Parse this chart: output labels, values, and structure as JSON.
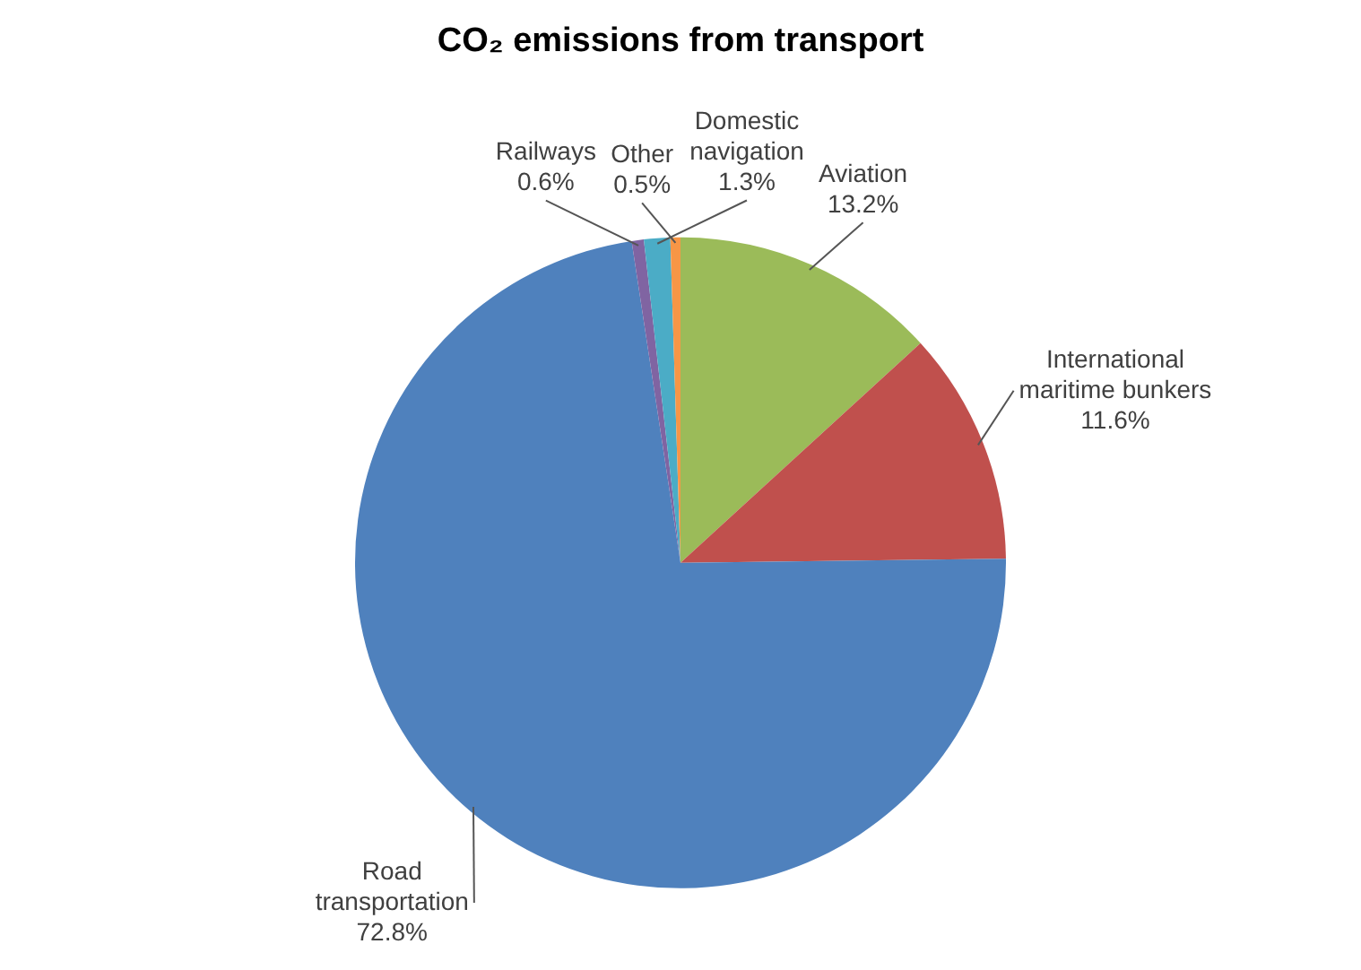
{
  "chart_data": {
    "type": "pie",
    "title": "CO₂ emissions from transport",
    "categories": [
      "Aviation",
      "International maritime bunkers",
      "Road transportation",
      "Railways",
      "Domestic navigation",
      "Other"
    ],
    "values": [
      13.2,
      11.6,
      72.8,
      0.6,
      1.3,
      0.5
    ],
    "colors": [
      "#9bbb59",
      "#c0504d",
      "#4f81bd",
      "#8064a2",
      "#4bacc6",
      "#f79646"
    ],
    "value_labels": [
      "13.2%",
      "11.6%",
      "72.8%",
      "0.6%",
      "1.3%",
      "0.5%"
    ],
    "legend": false
  }
}
